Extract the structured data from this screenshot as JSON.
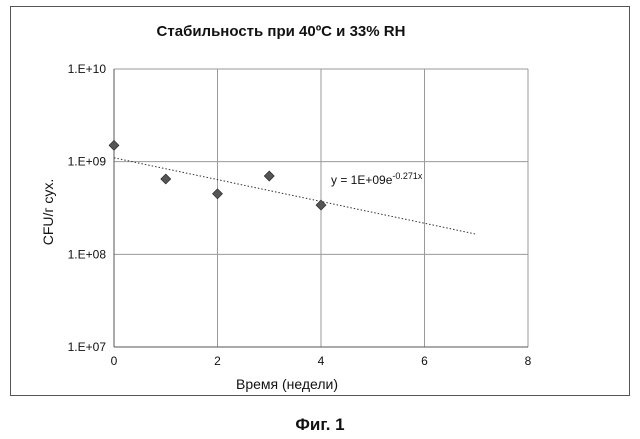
{
  "chart_data": {
    "type": "scatter",
    "title": "Стабильность при 40ºC и 33% RH",
    "xlabel": "Время (недели)",
    "ylabel": "CFU/г сух.",
    "xlim": [
      0,
      8
    ],
    "ylim": [
      10000000,
      10000000000
    ],
    "yscale": "log",
    "grid": true,
    "x_ticks": [
      "0",
      "2",
      "4",
      "6",
      "8"
    ],
    "y_ticks": [
      "1.E+07",
      "1.E+08",
      "1.E+09",
      "1.E+10"
    ],
    "series": [
      {
        "x": [
          0,
          1,
          2,
          3,
          4
        ],
        "y": [
          1500000000,
          650000000,
          450000000,
          700000000,
          340000000
        ],
        "marker": "diamond",
        "color": "#555555"
      }
    ],
    "trendline": {
      "type": "exponential",
      "equation": "y = 1E+09e",
      "exponent": "-0.271x",
      "coefficient": 1100000000,
      "rate": -0.271,
      "x_range": [
        0,
        7
      ],
      "style": "dotted",
      "color": "#333333"
    }
  },
  "figure_caption": "Фиг. 1"
}
